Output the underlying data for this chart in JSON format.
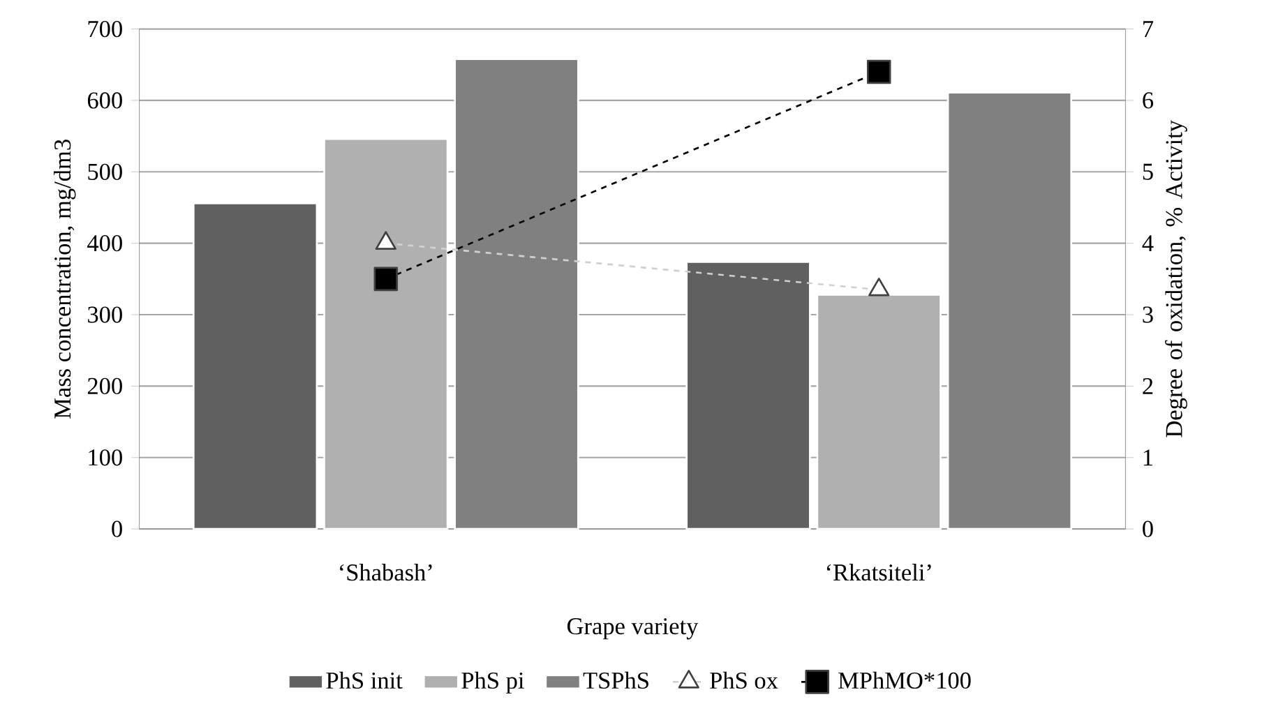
{
  "chart_data": {
    "type": "bar",
    "xlabel": "Grape variety",
    "ylabel": "Mass concentration, mg/dm3",
    "y2label": "Degree of oxidation, % Activity",
    "categories": [
      "‘Shabash’",
      "‘Rkatsiteli’"
    ],
    "series": [
      {
        "name": "PhS init",
        "color": "#606060",
        "values": [
          456,
          374
        ]
      },
      {
        "name": "PhS pi",
        "color": "#b0b0b0",
        "values": [
          546,
          328
        ]
      },
      {
        "name": "TSPhS",
        "color": "#808080",
        "values": [
          658,
          611
        ]
      },
      {
        "name": "PhS ox",
        "type": "line",
        "axis": "y2",
        "color": "#d0d0d0",
        "marker": "triangle",
        "line_style": "dashed",
        "values": [
          4.0,
          3.35
        ]
      },
      {
        "name": "MPhMO*100",
        "type": "line",
        "axis": "y2",
        "color": "#000000",
        "marker": "square",
        "line_style": "dashed",
        "values": [
          3.5,
          6.4
        ]
      }
    ],
    "ylim": [
      0,
      700
    ],
    "yticks": [
      0,
      100,
      200,
      300,
      400,
      500,
      600,
      700
    ],
    "y2lim": [
      0,
      7
    ],
    "y2ticks": [
      0,
      1,
      2,
      3,
      4,
      5,
      6,
      7
    ],
    "grid": "y",
    "legend": "bottom"
  }
}
